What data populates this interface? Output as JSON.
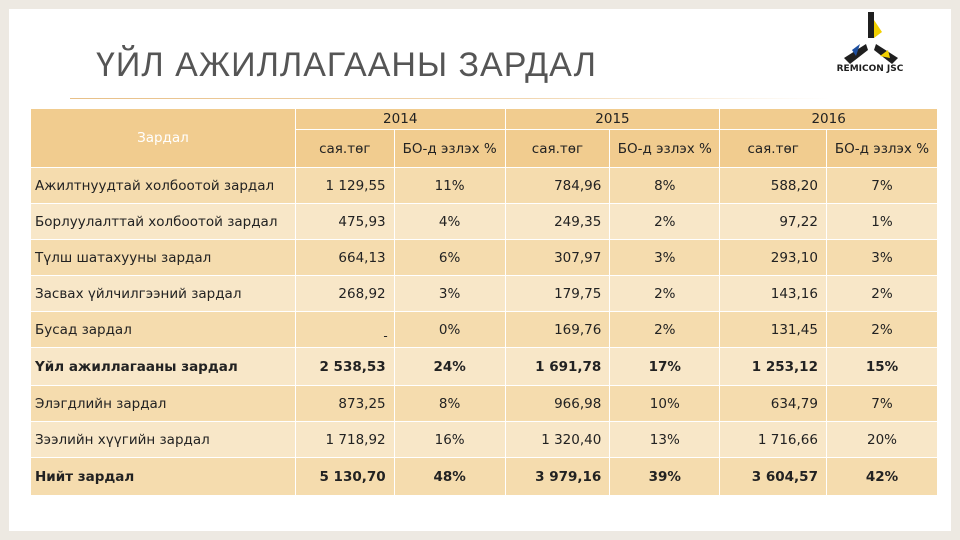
{
  "title": "ҮЙЛ АЖИЛЛАГААНЫ ЗАРДАЛ",
  "logo": {
    "text": "REMICON JSC",
    "colors": {
      "dark": "#1f1f1f",
      "yellow": "#f2d000",
      "blue": "#1d4fa0"
    }
  },
  "table": {
    "corner_label": "Зардал",
    "years": [
      "2014",
      "2015",
      "2016"
    ],
    "sub_headers": [
      "сая.төг",
      "БО-д эзлэх %"
    ],
    "rows": [
      {
        "name": "Ажилтнуудтай холбоотой зардал",
        "v2014": "1 129,55",
        "p2014": "11%",
        "v2015": "784,96",
        "p2015": "8%",
        "v2016": "588,20",
        "p2016": "7%"
      },
      {
        "name": "Борлуулалттай холбоотой зардал",
        "v2014": "475,93",
        "p2014": "4%",
        "v2015": "249,35",
        "p2015": "2%",
        "v2016": "97,22",
        "p2016": "1%"
      },
      {
        "name": "Түлш шатахууны зардал",
        "v2014": "664,13",
        "p2014": "6%",
        "v2015": "307,97",
        "p2015": "3%",
        "v2016": "293,10",
        "p2016": "3%"
      },
      {
        "name": "Засвах үйлчилгээний зардал",
        "v2014": "268,92",
        "p2014": "3%",
        "v2015": "179,75",
        "p2015": "2%",
        "v2016": "143,16",
        "p2016": "2%"
      },
      {
        "name": "Бусад зардал",
        "v2014": "-",
        "p2014": "0%",
        "v2015": "169,76",
        "p2015": "2%",
        "v2016": "131,45",
        "p2016": "2%"
      },
      {
        "name": "Үйл ажиллагааны зардал",
        "v2014": "2 538,53",
        "p2014": "24%",
        "v2015": "1 691,78",
        "p2015": "17%",
        "v2016": "1 253,12",
        "p2016": "15%"
      },
      {
        "name": "Элэгдлийн зардал",
        "v2014": "873,25",
        "p2014": "8%",
        "v2015": "966,98",
        "p2015": "10%",
        "v2016": "634,79",
        "p2016": "7%"
      },
      {
        "name": "Зээлийн хүүгийн зардал",
        "v2014": "1 718,92",
        "p2014": "16%",
        "v2015": "1 320,40",
        "p2015": "13%",
        "v2016": "1 716,66",
        "p2016": "20%"
      },
      {
        "name": "Нийт зардал",
        "v2014": "5 130,70",
        "p2014": "48%",
        "v2015": "3 979,16",
        "p2015": "39%",
        "v2016": "3 604,57",
        "p2016": "42%"
      }
    ]
  }
}
